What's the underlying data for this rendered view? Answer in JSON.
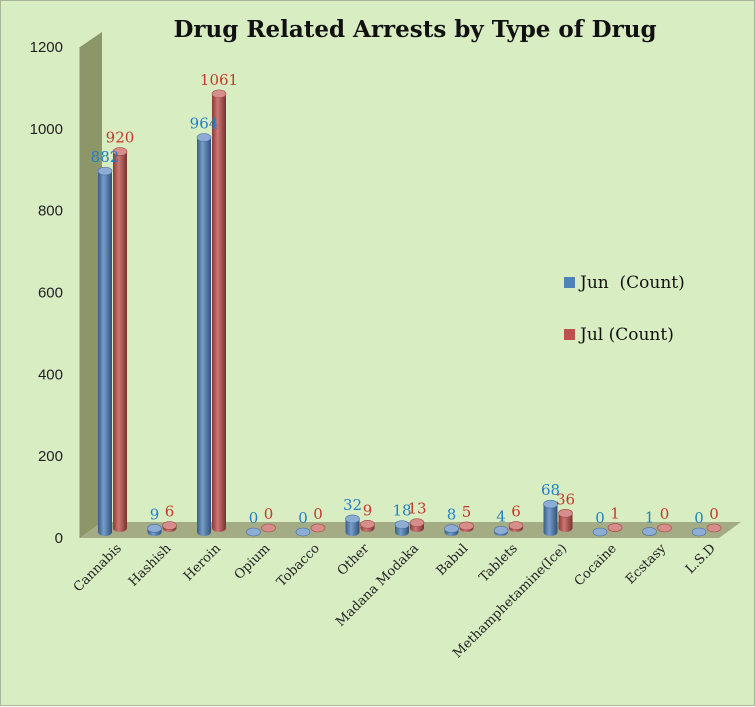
{
  "chart_data": {
    "type": "bar",
    "title": "Drug Related Arrests by Type of Drug",
    "xlabel": "",
    "ylabel": "",
    "ylim": [
      0,
      1200
    ],
    "yticks": [
      0,
      200,
      400,
      600,
      800,
      1000,
      1200
    ],
    "grid": false,
    "legend_position": "right",
    "categories": [
      "Cannabis",
      "Hashish",
      "Heroin",
      "Opium",
      "Tobacco",
      "Other",
      "Madana Modaka",
      "Babul",
      "Tablets",
      "Methamphetamine(Ice)",
      "Cocaine",
      "Ecstasy",
      "L.S.D"
    ],
    "series": [
      {
        "name": "Jun  (Count)",
        "color": "#4f81bd",
        "label_color": "#1f7fc4",
        "values": [
          882,
          9,
          964,
          0,
          0,
          32,
          18,
          8,
          4,
          68,
          0,
          1,
          0
        ]
      },
      {
        "name": "Jul (Count)",
        "color": "#c0504d",
        "label_color": "#c0392b",
        "values": [
          920,
          6,
          1061,
          0,
          0,
          9,
          13,
          5,
          6,
          36,
          1,
          0,
          0
        ]
      }
    ]
  },
  "colors": {
    "background": "#d9edc3",
    "back_wall": "#8b9768",
    "floor": "#a4ac86"
  }
}
